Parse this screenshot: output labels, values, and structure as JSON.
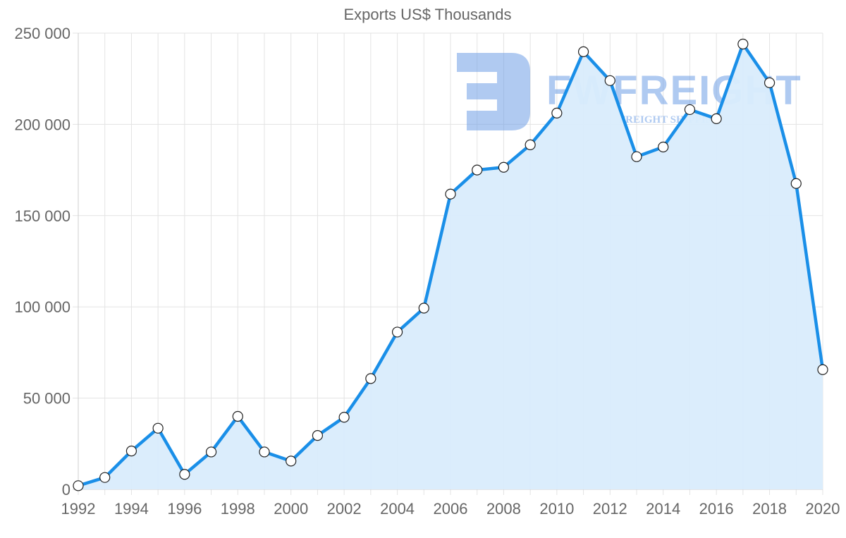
{
  "chart_data": {
    "type": "line",
    "title": "Exports US$ Thousands",
    "xlabel": "",
    "ylabel": "",
    "x": [
      1992,
      1993,
      1994,
      1995,
      1996,
      1997,
      1998,
      1999,
      2000,
      2001,
      2002,
      2003,
      2004,
      2005,
      2006,
      2007,
      2008,
      2009,
      2010,
      2011,
      2012,
      2013,
      2014,
      2015,
      2016,
      2017,
      2018,
      2019,
      2020
    ],
    "series": [
      {
        "name": "Exports US$ Thousands",
        "values": [
          2000,
          6500,
          21000,
          33500,
          8200,
          20500,
          40000,
          20500,
          15500,
          29500,
          39500,
          60700,
          86200,
          99300,
          161800,
          175000,
          176500,
          188800,
          206200,
          239800,
          224000,
          182300,
          187600,
          208100,
          203100,
          244000,
          222800,
          167600,
          65600
        ],
        "color": "#1a8fe8",
        "fill": "#d9ecfc"
      }
    ],
    "x_tick_labels": [
      "1992",
      "1994",
      "1996",
      "1998",
      "2000",
      "2002",
      "2004",
      "2006",
      "2008",
      "2010",
      "2012",
      "2014",
      "2016",
      "2018",
      "2020"
    ],
    "y_tick_labels": [
      "0",
      "50 000",
      "100 000",
      "150 000",
      "200 000",
      "250 000"
    ],
    "ylim": [
      0,
      250000
    ],
    "xlim": [
      1992,
      2020
    ],
    "grid": true,
    "legend": "none",
    "filled_area": true
  },
  "watermark": {
    "brand": "FWFREIGHT",
    "tagline": "FREIGHT SHIPPING",
    "color": "#6f9fe6"
  }
}
